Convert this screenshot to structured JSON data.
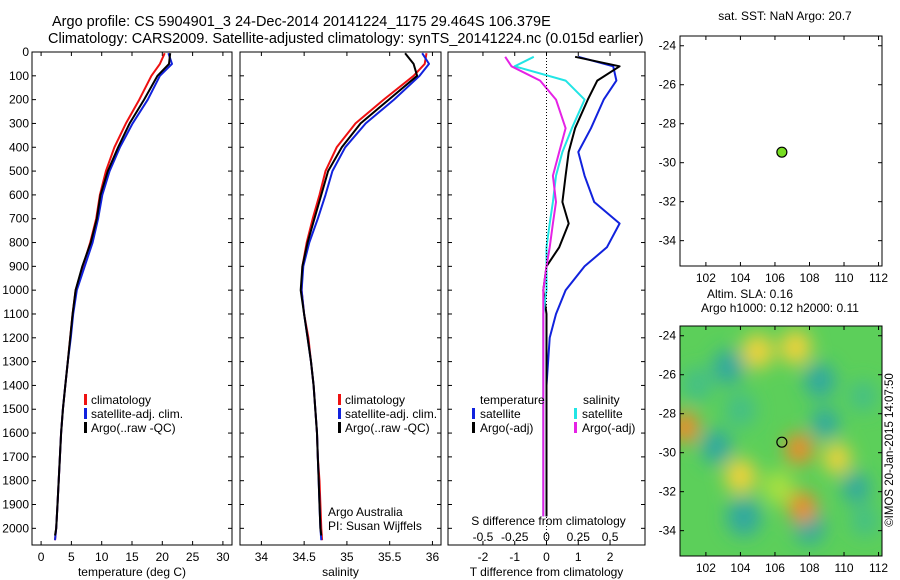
{
  "header": {
    "line1": "Argo profile: CS 5904901_3 24-Dec-2014 20141224_1175 29.464S 106.379E",
    "line2": "Climatology: CARS2009. Satellite-adjusted climatology: synTS_20141224.nc (0.015d earlier)"
  },
  "colors": {
    "climatology": "#ee1111",
    "satellite": "#1122dd",
    "argo": "#000000",
    "salinity_satellite": "#22e5e5",
    "salinity_argo": "#e522e5",
    "marker": "#77dd22"
  },
  "credit": "©IMOS 20-Jan-2015 14:07:50",
  "chart_data": [
    {
      "id": "temperature",
      "type": "line",
      "xlabel": "temperature (deg C)",
      "xlim": [
        -1.5,
        31.5
      ],
      "ylim": [
        0,
        2070
      ],
      "xticks": [
        0,
        5,
        10,
        15,
        20,
        25,
        30
      ],
      "yticks": [
        0,
        100,
        200,
        300,
        400,
        500,
        600,
        700,
        800,
        900,
        1000,
        1100,
        1200,
        1300,
        1400,
        1500,
        1600,
        1700,
        1800,
        1900,
        2000
      ],
      "yreversed": true,
      "legend": [
        "climatology",
        "satellite-adj. clim.",
        "Argo(..raw -QC)"
      ],
      "series": [
        {
          "name": "climatology",
          "color_key": "climatology",
          "x": [
            20.4,
            19.6,
            18.2,
            16.2,
            14.0,
            12.1,
            10.7,
            9.7,
            9.1,
            8.1,
            6.9,
            5.7,
            5.2,
            4.8,
            4.4,
            4.0,
            3.6,
            3.3,
            3.1,
            2.9,
            2.7,
            2.5,
            2.3
          ],
          "y": [
            5,
            50,
            100,
            200,
            300,
            400,
            500,
            600,
            700,
            800,
            900,
            1000,
            1100,
            1200,
            1300,
            1400,
            1500,
            1600,
            1700,
            1800,
            1900,
            2000,
            2050
          ]
        },
        {
          "name": "satellite-adj. clim.",
          "color_key": "satellite",
          "x": [
            21.0,
            21.6,
            19.6,
            17.6,
            15.1,
            13.0,
            11.3,
            10.1,
            9.4,
            8.5,
            7.2,
            5.9,
            5.3,
            4.9,
            4.4,
            4.0,
            3.6,
            3.3,
            3.1,
            2.9,
            2.7,
            2.5,
            2.3
          ],
          "y": [
            5,
            50,
            100,
            200,
            300,
            400,
            500,
            600,
            700,
            800,
            900,
            1000,
            1100,
            1200,
            1300,
            1400,
            1500,
            1600,
            1700,
            1800,
            1900,
            2000,
            2050
          ]
        },
        {
          "name": "Argo(..raw -QC)",
          "color_key": "argo",
          "x": [
            21.3,
            21.1,
            19.2,
            17.0,
            14.6,
            12.7,
            11.0,
            9.8,
            9.2,
            8.2,
            6.8,
            5.7,
            5.2,
            4.8,
            4.4,
            4.0,
            3.6,
            3.3,
            3.1,
            2.9,
            2.7,
            2.5,
            2.3
          ],
          "y": [
            5,
            50,
            100,
            200,
            300,
            400,
            500,
            600,
            700,
            800,
            900,
            1000,
            1100,
            1200,
            1300,
            1400,
            1500,
            1600,
            1700,
            1800,
            1900,
            2000,
            2030
          ]
        }
      ]
    },
    {
      "id": "salinity",
      "type": "line",
      "xlabel": "salinity",
      "xlim": [
        33.75,
        36.1
      ],
      "ylim": [
        0,
        2070
      ],
      "xticks": [
        34,
        34.5,
        35,
        35.5,
        36
      ],
      "xticklabels": [
        "34",
        "34.5",
        "35",
        "35.5",
        "36"
      ],
      "yticks": [
        0,
        100,
        200,
        300,
        400,
        500,
        600,
        700,
        800,
        900,
        1000,
        1100,
        1200,
        1300,
        1400,
        1500,
        1600,
        1700,
        1800,
        1900,
        2000
      ],
      "yreversed": true,
      "legend": [
        "climatology",
        "satellite-adj. clim.",
        "Argo(..raw -QC)"
      ],
      "annotation": [
        "Argo Australia",
        "PI: Susan Wijffels"
      ],
      "series": [
        {
          "name": "climatology",
          "color_key": "climatology",
          "x": [
            35.93,
            35.91,
            35.78,
            35.43,
            35.1,
            34.88,
            34.75,
            34.68,
            34.6,
            34.53,
            34.48,
            34.47,
            34.5,
            34.55,
            34.58,
            34.61,
            34.63,
            34.65,
            34.66,
            34.68,
            34.69,
            34.7,
            34.71
          ],
          "y": [
            5,
            50,
            100,
            200,
            300,
            400,
            500,
            600,
            700,
            800,
            900,
            1000,
            1100,
            1200,
            1300,
            1400,
            1500,
            1600,
            1700,
            1800,
            1900,
            2000,
            2050
          ]
        },
        {
          "name": "satellite-adj. clim.",
          "color_key": "satellite",
          "x": [
            35.88,
            35.96,
            35.85,
            35.55,
            35.22,
            34.98,
            34.83,
            34.75,
            34.66,
            34.56,
            34.49,
            34.47,
            34.5,
            34.54,
            34.58,
            34.61,
            34.63,
            34.65,
            34.66,
            34.67,
            34.68,
            34.69,
            34.7
          ],
          "y": [
            5,
            50,
            100,
            200,
            300,
            400,
            500,
            600,
            700,
            800,
            900,
            1000,
            1100,
            1200,
            1300,
            1400,
            1500,
            1600,
            1700,
            1800,
            1900,
            2000,
            2050
          ]
        },
        {
          "name": "Argo(..raw -QC)",
          "color_key": "argo",
          "x": [
            35.68,
            35.78,
            35.82,
            35.49,
            35.16,
            34.94,
            34.78,
            34.7,
            34.62,
            34.54,
            34.48,
            34.46,
            34.5,
            34.54,
            34.58,
            34.61,
            34.63,
            34.65,
            34.66,
            34.67,
            34.68,
            34.69,
            34.7
          ],
          "y": [
            5,
            50,
            100,
            200,
            300,
            400,
            500,
            600,
            700,
            800,
            900,
            1000,
            1100,
            1200,
            1300,
            1400,
            1500,
            1600,
            1700,
            1800,
            1900,
            2000,
            2030
          ]
        }
      ]
    },
    {
      "id": "difference",
      "type": "line",
      "xlabel": "T difference from climatology",
      "x2label": "S difference from climatology",
      "xlim": [
        -3.1,
        3.1
      ],
      "ylim": [
        0,
        2070
      ],
      "xticks": [
        -2,
        -1,
        0,
        1,
        2
      ],
      "x2ticks": [
        -0.5,
        -0.25,
        0,
        0.25,
        0.5
      ],
      "x2ticklabels": [
        "-0.5",
        "-0.25",
        "0",
        "0.25",
        "0.5"
      ],
      "yticks": [
        0,
        100,
        200,
        300,
        400,
        500,
        600,
        700,
        800,
        900,
        1000,
        1100,
        1200,
        1300,
        1400,
        1500,
        1600,
        1700,
        1800,
        1900,
        2000
      ],
      "yreversed": true,
      "legend_titles": [
        "temperature",
        "salinity"
      ],
      "legend": [
        "satellite",
        "Argo(-adj)",
        "satellite",
        "Argo(-adj)"
      ],
      "series": [
        {
          "name": "temperature satellite",
          "color_key": "satellite",
          "x": [
            1.0,
            2.1,
            2.2,
            1.8,
            1.4,
            1.0,
            1.2,
            1.5,
            2.3,
            1.9,
            1.2,
            0.6,
            0.3,
            0.1,
            0.05,
            0.0,
            0.0,
            0.0,
            0.0,
            0.0,
            0.0
          ],
          "y": [
            20,
            60,
            120,
            200,
            320,
            420,
            520,
            630,
            720,
            820,
            900,
            1000,
            1100,
            1200,
            1300,
            1400,
            1500,
            1600,
            1700,
            1800,
            1950
          ]
        },
        {
          "name": "temperature Argo(-adj)",
          "color_key": "argo",
          "x": [
            0.9,
            2.3,
            1.6,
            1.3,
            0.9,
            0.7,
            0.6,
            0.5,
            0.7,
            0.4,
            0.0,
            -0.1,
            0.0,
            0.0,
            0.0,
            0.0,
            0.0,
            0.0,
            0.0,
            0.0,
            0.0
          ],
          "y": [
            20,
            60,
            120,
            200,
            320,
            420,
            520,
            630,
            720,
            820,
            900,
            1000,
            1100,
            1200,
            1300,
            1400,
            1500,
            1600,
            1700,
            1800,
            1950
          ]
        },
        {
          "name": "salinity satellite",
          "color_key": "salinity_satellite",
          "x": [
            -0.4,
            -1.0,
            0.6,
            1.2,
            0.8,
            0.5,
            0.3,
            0.2,
            0.1,
            0.0,
            0.0,
            0.0,
            -0.1,
            -0.1,
            -0.1,
            -0.1,
            -0.1,
            -0.1,
            -0.1,
            -0.1,
            -0.1
          ],
          "y": [
            20,
            60,
            120,
            200,
            320,
            420,
            520,
            630,
            720,
            820,
            900,
            1000,
            1100,
            1200,
            1300,
            1400,
            1500,
            1600,
            1700,
            1800,
            1950
          ]
        },
        {
          "name": "salinity Argo(-adj)",
          "color_key": "salinity_argo",
          "x": [
            -1.3,
            -1.1,
            -0.2,
            0.3,
            0.6,
            0.4,
            0.2,
            0.3,
            0.2,
            0.1,
            0.0,
            -0.1,
            -0.1,
            -0.1,
            -0.1,
            -0.1,
            -0.1,
            -0.1,
            -0.1,
            -0.1,
            -0.1
          ],
          "y": [
            20,
            60,
            120,
            200,
            320,
            420,
            520,
            630,
            720,
            820,
            900,
            1000,
            1100,
            1200,
            1300,
            1400,
            1500,
            1600,
            1700,
            1800,
            1950
          ]
        }
      ]
    },
    {
      "id": "sst_map",
      "type": "scatter",
      "title": "sat. SST: NaN Argo: 20.7",
      "xlim": [
        100.5,
        112.2
      ],
      "ylim": [
        -35.3,
        -23.5
      ],
      "xticks": [
        102,
        104,
        106,
        108,
        110,
        112
      ],
      "yticks": [
        -24,
        -26,
        -28,
        -30,
        -32,
        -34
      ],
      "points": [
        {
          "x": 106.4,
          "y": -29.46
        }
      ]
    },
    {
      "id": "sla_map",
      "type": "heatmap",
      "title": [
        "Altim. SLA: 0.16",
        "Argo h1000: 0.12 h2000: 0.11"
      ],
      "xlim": [
        100.5,
        112.2
      ],
      "ylim": [
        -35.3,
        -23.5
      ],
      "xticks": [
        102,
        104,
        106,
        108,
        110,
        112
      ],
      "yticks": [
        -24,
        -26,
        -28,
        -30,
        -32,
        -34
      ],
      "points": [
        {
          "x": 106.4,
          "y": -29.46
        }
      ],
      "blobs": [
        {
          "x": 103.3,
          "y": -25.6,
          "v": -0.9,
          "r": 0.9
        },
        {
          "x": 101.5,
          "y": -26.5,
          "v": -0.6,
          "r": 0.9
        },
        {
          "x": 104.0,
          "y": -27.8,
          "v": -0.7,
          "r": 0.9
        },
        {
          "x": 102.6,
          "y": -29.7,
          "v": -0.8,
          "r": 0.9
        },
        {
          "x": 108.6,
          "y": -26.3,
          "v": -0.9,
          "r": 0.9
        },
        {
          "x": 108.9,
          "y": -28.5,
          "v": -0.8,
          "r": 0.8
        },
        {
          "x": 111.1,
          "y": -27.1,
          "v": -0.7,
          "r": 0.8
        },
        {
          "x": 104.2,
          "y": -33.3,
          "v": -0.9,
          "r": 1.0
        },
        {
          "x": 108.0,
          "y": -33.8,
          "v": -0.8,
          "r": 0.9
        },
        {
          "x": 110.7,
          "y": -31.8,
          "v": -0.8,
          "r": 0.8
        },
        {
          "x": 111.2,
          "y": -33.5,
          "v": -0.6,
          "r": 0.8
        },
        {
          "x": 107.2,
          "y": -24.6,
          "v": 0.6,
          "r": 0.9
        },
        {
          "x": 105.0,
          "y": -24.8,
          "v": 0.35,
          "r": 0.9
        },
        {
          "x": 100.8,
          "y": -28.7,
          "v": 0.9,
          "r": 0.8
        },
        {
          "x": 107.4,
          "y": -29.8,
          "v": 0.8,
          "r": 0.8
        },
        {
          "x": 109.6,
          "y": -30.3,
          "v": 0.6,
          "r": 0.8
        },
        {
          "x": 107.6,
          "y": -32.8,
          "v": 0.7,
          "r": 0.8
        },
        {
          "x": 104.0,
          "y": -31.2,
          "v": 0.35,
          "r": 0.9
        },
        {
          "x": 106.2,
          "y": -31.8,
          "v": 0.25,
          "r": 0.9
        }
      ]
    }
  ]
}
